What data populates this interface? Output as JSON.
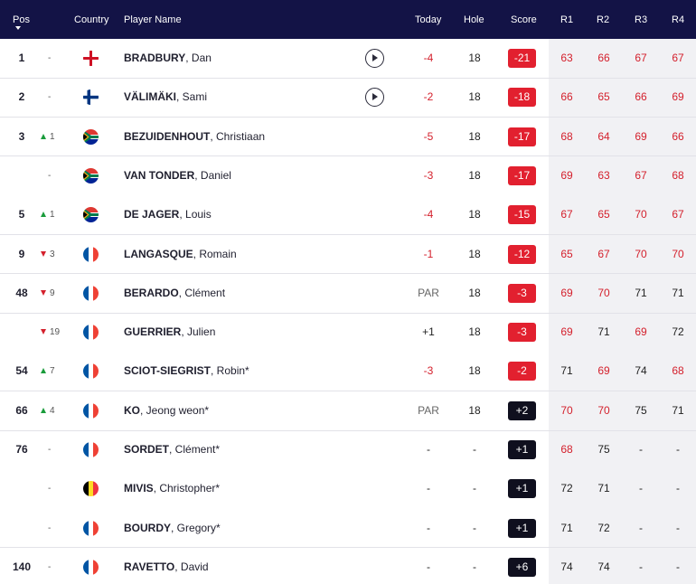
{
  "header": {
    "pos": "Pos",
    "country": "Country",
    "player": "Player Name",
    "today": "Today",
    "hole": "Hole",
    "score": "Score",
    "r1": "R1",
    "r2": "R2",
    "r3": "R3",
    "r4": "R4"
  },
  "colors": {
    "header_bg": "#131346",
    "under_par": "#e2202f",
    "over_par": "#0f0f1e",
    "up": "#1a9c3b",
    "down": "#d4202c"
  },
  "rows": [
    {
      "pos": "1",
      "move_dir": "none",
      "move": "-",
      "flag": "england",
      "last": "BRADBURY",
      "first": ", Dan",
      "play": true,
      "today": "-4",
      "today_red": true,
      "hole": "18",
      "score": "-21",
      "score_type": "under",
      "r1": "63",
      "r2": "66",
      "r3": "67",
      "r4": "67",
      "r_red": [
        true,
        true,
        true,
        true
      ]
    },
    {
      "pos": "2",
      "move_dir": "none",
      "move": "-",
      "flag": "finland",
      "last": "VÄLIMÄKI",
      "first": ", Sami",
      "play": true,
      "today": "-2",
      "today_red": true,
      "hole": "18",
      "score": "-18",
      "score_type": "under",
      "r1": "66",
      "r2": "65",
      "r3": "66",
      "r4": "69",
      "r_red": [
        true,
        true,
        true,
        true
      ]
    },
    {
      "pos": "3",
      "move_dir": "up",
      "move": "1",
      "flag": "southafrica",
      "last": "BEZUIDENHOUT",
      "first": ", Christiaan",
      "play": false,
      "today": "-5",
      "today_red": true,
      "hole": "18",
      "score": "-17",
      "score_type": "under",
      "r1": "68",
      "r2": "64",
      "r3": "69",
      "r4": "66",
      "r_red": [
        true,
        true,
        true,
        true
      ]
    },
    {
      "pos": "",
      "move_dir": "none",
      "move": "-",
      "flag": "southafrica",
      "last": "VAN TONDER",
      "first": ", Daniel",
      "play": false,
      "today": "-3",
      "today_red": true,
      "hole": "18",
      "score": "-17",
      "score_type": "under",
      "r1": "69",
      "r2": "63",
      "r3": "67",
      "r4": "68",
      "r_red": [
        true,
        true,
        true,
        true
      ]
    },
    {
      "pos": "5",
      "move_dir": "up",
      "move": "1",
      "flag": "southafrica",
      "last": "DE JAGER",
      "first": ", Louis",
      "play": false,
      "today": "-4",
      "today_red": true,
      "hole": "18",
      "score": "-15",
      "score_type": "under",
      "r1": "67",
      "r2": "65",
      "r3": "70",
      "r4": "67",
      "r_red": [
        true,
        true,
        true,
        true
      ]
    },
    {
      "pos": "9",
      "move_dir": "down",
      "move": "3",
      "flag": "france",
      "last": "LANGASQUE",
      "first": ", Romain",
      "play": false,
      "today": "-1",
      "today_red": true,
      "hole": "18",
      "score": "-12",
      "score_type": "under",
      "r1": "65",
      "r2": "67",
      "r3": "70",
      "r4": "70",
      "r_red": [
        true,
        true,
        true,
        true
      ]
    },
    {
      "pos": "48",
      "move_dir": "down",
      "move": "9",
      "flag": "france",
      "last": "BERARDO",
      "first": ", Clément",
      "play": false,
      "today": "PAR",
      "today_red": false,
      "today_gray": true,
      "hole": "18",
      "score": "-3",
      "score_type": "under",
      "r1": "69",
      "r2": "70",
      "r3": "71",
      "r4": "71",
      "r_red": [
        true,
        true,
        false,
        false
      ]
    },
    {
      "pos": "",
      "move_dir": "down",
      "move": "19",
      "flag": "france",
      "last": "GUERRIER",
      "first": ", Julien",
      "play": false,
      "today": "+1",
      "today_red": false,
      "hole": "18",
      "score": "-3",
      "score_type": "under",
      "r1": "69",
      "r2": "71",
      "r3": "69",
      "r4": "72",
      "r_red": [
        true,
        false,
        true,
        false
      ]
    },
    {
      "pos": "54",
      "move_dir": "up",
      "move": "7",
      "flag": "france",
      "last": "SCIOT-SIEGRIST",
      "first": ", Robin*",
      "play": false,
      "today": "-3",
      "today_red": true,
      "hole": "18",
      "score": "-2",
      "score_type": "under",
      "r1": "71",
      "r2": "69",
      "r3": "74",
      "r4": "68",
      "r_red": [
        false,
        true,
        false,
        true
      ]
    },
    {
      "pos": "66",
      "move_dir": "up",
      "move": "4",
      "flag": "france",
      "last": "KO",
      "first": ", Jeong weon*",
      "play": false,
      "today": "PAR",
      "today_red": false,
      "today_gray": true,
      "hole": "18",
      "score": "+2",
      "score_type": "over",
      "r1": "70",
      "r2": "70",
      "r3": "75",
      "r4": "71",
      "r_red": [
        true,
        true,
        false,
        false
      ]
    },
    {
      "pos": "76",
      "move_dir": "none",
      "move": "-",
      "flag": "france",
      "last": "SORDET",
      "first": ", Clément*",
      "play": false,
      "today": "-",
      "today_red": false,
      "hole": "-",
      "score": "+1",
      "score_type": "over",
      "r1": "68",
      "r2": "75",
      "r3": "-",
      "r4": "-",
      "r_red": [
        true,
        false,
        false,
        false
      ]
    },
    {
      "pos": "",
      "move_dir": "none",
      "move": "-",
      "flag": "belgium",
      "last": "MIVIS",
      "first": ", Christopher*",
      "play": false,
      "today": "-",
      "today_red": false,
      "hole": "-",
      "score": "+1",
      "score_type": "over",
      "r1": "72",
      "r2": "71",
      "r3": "-",
      "r4": "-",
      "r_red": [
        false,
        false,
        false,
        false
      ]
    },
    {
      "pos": "",
      "move_dir": "none",
      "move": "-",
      "flag": "france",
      "last": "BOURDY",
      "first": ", Gregory*",
      "play": false,
      "today": "-",
      "today_red": false,
      "hole": "-",
      "score": "+1",
      "score_type": "over",
      "r1": "71",
      "r2": "72",
      "r3": "-",
      "r4": "-",
      "r_red": [
        false,
        false,
        false,
        false
      ]
    },
    {
      "pos": "140",
      "move_dir": "none",
      "move": "-",
      "flag": "france",
      "last": "RAVETTO",
      "first": ", David",
      "play": false,
      "today": "-",
      "today_red": false,
      "hole": "-",
      "score": "+6",
      "score_type": "over",
      "r1": "74",
      "r2": "74",
      "r3": "-",
      "r4": "-",
      "r_red": [
        false,
        false,
        false,
        false
      ]
    }
  ],
  "separators_after": [
    0,
    1,
    2,
    4,
    5,
    6,
    8,
    9,
    12
  ]
}
